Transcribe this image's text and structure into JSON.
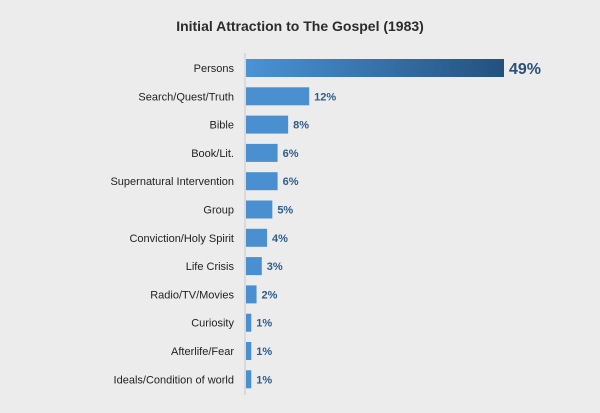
{
  "chart_data": {
    "type": "bar",
    "orientation": "horizontal",
    "title": "Initial Attraction to The Gospel (1983)",
    "categories": [
      "Persons",
      "Search/Quest/Truth",
      "Bible",
      "Book/Lit.",
      "Supernatural Intervention",
      "Group",
      "Conviction/Holy Spirit",
      "Life Crisis",
      "Radio/TV/Movies",
      "Curiosity",
      "Afterlife/Fear",
      "Ideals/Condition of world"
    ],
    "values": [
      49,
      12,
      8,
      6,
      6,
      5,
      4,
      3,
      2,
      1,
      1,
      1
    ],
    "value_labels": [
      "49%",
      "12%",
      "8%",
      "6%",
      "6%",
      "5%",
      "4%",
      "3%",
      "2%",
      "1%",
      "1%",
      "1%"
    ],
    "xlim": [
      0,
      50
    ],
    "grid": false,
    "colors": {
      "bar": "#4a8fd0",
      "highlight_start": "#4a93d6",
      "highlight_end": "#23517f",
      "axis": "#c8c8c8",
      "value_text": "#2f5d8a"
    }
  }
}
